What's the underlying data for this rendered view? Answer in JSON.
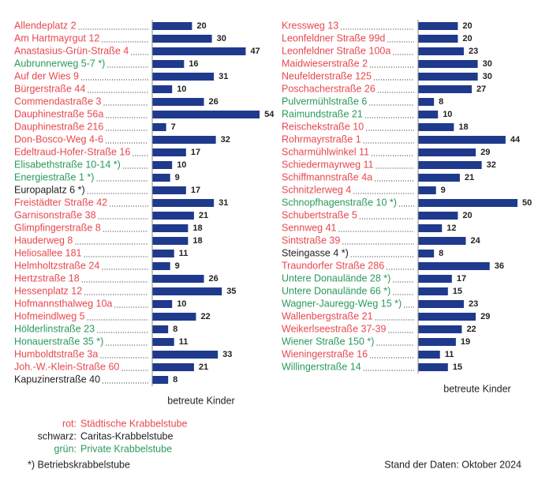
{
  "chart_data": [
    {
      "type": "hbar",
      "x_label": "betreute Kinder",
      "bar_color": "#1f3a8c",
      "categories": [
        "Allendeplatz 2",
        "Am Hartmayrgut 12",
        "Anastasius-Grün-Straße 4",
        "Aubrunnerweg 5-7 *)",
        "Auf der Wies 9",
        "Bürgerstraße 44",
        "Commendastraße 3",
        "Dauphinestraße 56a",
        "Dauphinestraße 216",
        "Don-Bosco-Weg 4-6",
        "Edeltraud-Hofer-Straße 16",
        "Elisabethstraße 10-14 *)",
        "Energiestraße 1 *)",
        "Europaplatz 6 *)",
        "Freistädter Straße 42",
        "Garnisonstraße 38",
        "Glimpfingerstraße 8",
        "Hauderweg 8",
        "Heliosallee 181",
        "Helmholtzstraße 24",
        "Hertzstraße 18",
        "Hessenplatz 12",
        "Hofmannsthalweg 10a",
        "Hofmeindlweg 5",
        "Hölderlinstraße 23",
        "Honauerstraße 35 *)",
        "Humboldtstraße 3a",
        "Joh.-W.-Klein-Straße 60",
        "Kapuzinerstraße 40"
      ],
      "values": [
        20,
        30,
        47,
        16,
        31,
        10,
        26,
        54,
        7,
        32,
        17,
        10,
        9,
        17,
        31,
        21,
        18,
        18,
        11,
        9,
        26,
        35,
        10,
        22,
        8,
        11,
        33,
        21,
        8
      ],
      "label_colors": [
        "#e8474f",
        "#e8474f",
        "#e8474f",
        "#2a9a5a",
        "#e8474f",
        "#e8474f",
        "#e8474f",
        "#e8474f",
        "#e8474f",
        "#e8474f",
        "#e8474f",
        "#2a9a5a",
        "#2a9a5a",
        "#222222",
        "#e8474f",
        "#e8474f",
        "#e8474f",
        "#e8474f",
        "#e8474f",
        "#e8474f",
        "#e8474f",
        "#e8474f",
        "#e8474f",
        "#e8474f",
        "#2a9a5a",
        "#2a9a5a",
        "#e8474f",
        "#e8474f",
        "#222222"
      ]
    },
    {
      "type": "hbar",
      "x_label": "betreute Kinder",
      "bar_color": "#1f3a8c",
      "categories": [
        "Kressweg 13",
        "Leonfeldner Straße 99d",
        "Leonfeldner Straße 100a",
        "Maidwieserstraße 2",
        "Neufelderstraße 125",
        "Poschacherstraße 26",
        "Pulvermühlstraße 6",
        "Raimundstraße 21",
        "Reischekstraße 10",
        "Rohrmayrstraße 1",
        "Scharmühlwinkel 11",
        "Schiedermayrweg 11",
        "Schiffmannstraße 4a",
        "Schnitzlerweg 4",
        "Schnopfhagenstraße 10 *)",
        "Schubertstraße 5",
        "Sennweg 41",
        "Sintstraße 39",
        "Steingasse 4 *)",
        "Traundorfer Straße 286",
        "Untere Donaulände 28 *)",
        "Untere Donaulände 66 *)",
        "Wagner-Jauregg-Weg 15 *)",
        "Wallenbergstraße 21",
        "Weikerlseestraße 37-39",
        "Wiener Straße 150 *)",
        "Wieningerstraße 16",
        "Willingerstraße 14"
      ],
      "values": [
        20,
        20,
        23,
        30,
        30,
        27,
        8,
        10,
        18,
        44,
        29,
        32,
        21,
        9,
        50,
        20,
        12,
        24,
        8,
        36,
        17,
        15,
        23,
        29,
        22,
        19,
        11,
        15
      ],
      "label_colors": [
        "#e8474f",
        "#e8474f",
        "#e8474f",
        "#e8474f",
        "#e8474f",
        "#e8474f",
        "#2a9a5a",
        "#2a9a5a",
        "#e8474f",
        "#e8474f",
        "#e8474f",
        "#e8474f",
        "#e8474f",
        "#e8474f",
        "#2a9a5a",
        "#e8474f",
        "#e8474f",
        "#e8474f",
        "#222222",
        "#e8474f",
        "#2a9a5a",
        "#2a9a5a",
        "#2a9a5a",
        "#e8474f",
        "#e8474f",
        "#2a9a5a",
        "#e8474f",
        "#2a9a5a"
      ]
    }
  ],
  "legend": [
    {
      "key": "rot:",
      "label": "Städtische Krabbelstube",
      "color": "#e8474f"
    },
    {
      "key": "schwarz:",
      "label": "Caritas-Krabbelstube",
      "color": "#222222"
    },
    {
      "key": "grün:",
      "label": "Private Krabbelstube",
      "color": "#2a9a5a"
    }
  ],
  "footnote": "*) Betriebskrabbelstube",
  "source": "Stand der Daten: Oktober 2024"
}
